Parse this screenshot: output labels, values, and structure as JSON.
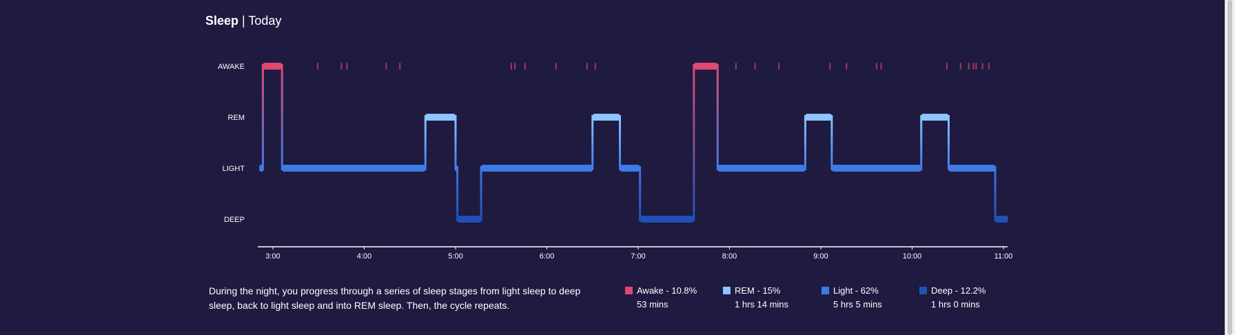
{
  "header": {
    "title": "Sleep",
    "separator": "|",
    "subtitle": "Today"
  },
  "description": "During the night, you progress through a series of sleep stages from light sleep to deep sleep, back to light sleep and into REM sleep. Then, the cycle repeats.",
  "colors": {
    "background": "#1e1a40",
    "awake": "#e0496e",
    "rem": "#8ec4ff",
    "light": "#3f7ae6",
    "deep": "#2150b4",
    "awake_tick": "#9a3560"
  },
  "legend": [
    {
      "key": "awake",
      "label": "Awake - 10.8%",
      "duration": "53 mins"
    },
    {
      "key": "rem",
      "label": "REM - 15%",
      "duration": "1 hrs 14 mins"
    },
    {
      "key": "light",
      "label": "Light - 62%",
      "duration": "5 hrs 5 mins"
    },
    {
      "key": "deep",
      "label": "Deep - 12.2%",
      "duration": "1 hrs 0 mins"
    }
  ],
  "chart_data": {
    "type": "step-area",
    "stages": [
      "AWAKE",
      "REM",
      "LIGHT",
      "DEEP"
    ],
    "x_ticks": [
      "3:00",
      "4:00",
      "5:00",
      "6:00",
      "7:00",
      "8:00",
      "9:00",
      "10:00",
      "11:00"
    ],
    "x_range_hours": [
      2.85,
      11.05
    ],
    "segments": [
      {
        "stage": "LIGHT",
        "start": 2.85,
        "end": 2.9
      },
      {
        "stage": "AWAKE",
        "start": 2.89,
        "end": 3.1
      },
      {
        "stage": "LIGHT",
        "start": 3.1,
        "end": 4.67
      },
      {
        "stage": "REM",
        "start": 4.67,
        "end": 5.0
      },
      {
        "stage": "LIGHT",
        "start": 5.0,
        "end": 5.02
      },
      {
        "stage": "DEEP",
        "start": 5.02,
        "end": 5.28
      },
      {
        "stage": "LIGHT",
        "start": 5.28,
        "end": 6.5
      },
      {
        "stage": "REM",
        "start": 6.5,
        "end": 6.8
      },
      {
        "stage": "LIGHT",
        "start": 6.8,
        "end": 7.02
      },
      {
        "stage": "DEEP",
        "start": 7.02,
        "end": 7.61
      },
      {
        "stage": "AWAKE",
        "start": 7.61,
        "end": 7.87
      },
      {
        "stage": "LIGHT",
        "start": 7.87,
        "end": 8.83
      },
      {
        "stage": "REM",
        "start": 8.83,
        "end": 9.12
      },
      {
        "stage": "LIGHT",
        "start": 9.12,
        "end": 10.1
      },
      {
        "stage": "REM",
        "start": 10.1,
        "end": 10.4
      },
      {
        "stage": "LIGHT",
        "start": 10.4,
        "end": 10.91
      },
      {
        "stage": "DEEP",
        "start": 10.91,
        "end": 11.05
      }
    ],
    "awake_ticks": [
      3.49,
      3.75,
      3.81,
      4.24,
      4.39,
      5.61,
      5.65,
      5.76,
      6.1,
      6.44,
      6.53,
      8.07,
      8.28,
      8.54,
      9.1,
      9.28,
      9.61,
      9.66,
      10.38,
      10.53,
      10.62,
      10.67,
      10.7,
      10.77,
      10.84
    ]
  }
}
